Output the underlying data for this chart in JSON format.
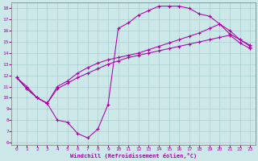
{
  "xlabel": "Windchill (Refroidissement éolien,°C)",
  "bg_color": "#cce8e8",
  "grid_color": "#aacfcf",
  "line_color": "#aa00aa",
  "spine_color": "#888888",
  "xlim": [
    -0.5,
    23.5
  ],
  "ylim": [
    5.8,
    18.5
  ],
  "xticks": [
    0,
    1,
    2,
    3,
    4,
    5,
    6,
    7,
    8,
    9,
    10,
    11,
    12,
    13,
    14,
    15,
    16,
    17,
    18,
    19,
    20,
    21,
    22,
    23
  ],
  "yticks": [
    6,
    7,
    8,
    9,
    10,
    11,
    12,
    13,
    14,
    15,
    16,
    17,
    18
  ],
  "line1_x": [
    0,
    1,
    2,
    3,
    4,
    5,
    6,
    7,
    8,
    9,
    10,
    11,
    12,
    13,
    14,
    15,
    16,
    17,
    18,
    19,
    20,
    21,
    22,
    23
  ],
  "line1_y": [
    11.8,
    10.8,
    10.0,
    9.5,
    10.8,
    11.3,
    11.8,
    12.2,
    12.6,
    13.0,
    13.3,
    13.6,
    13.8,
    14.0,
    14.2,
    14.4,
    14.6,
    14.8,
    15.0,
    15.2,
    15.4,
    15.6,
    14.9,
    14.4
  ],
  "line2_x": [
    0,
    1,
    2,
    3,
    4,
    5,
    6,
    7,
    8,
    9,
    10,
    11,
    12,
    13,
    14,
    15,
    16,
    17,
    18,
    19,
    20,
    21,
    22,
    23
  ],
  "line2_y": [
    11.8,
    11.0,
    10.0,
    9.5,
    11.0,
    11.5,
    12.2,
    12.7,
    13.1,
    13.4,
    13.6,
    13.8,
    14.0,
    14.3,
    14.6,
    14.9,
    15.2,
    15.5,
    15.8,
    16.2,
    16.6,
    16.0,
    15.2,
    14.7
  ],
  "line3_x": [
    0,
    1,
    2,
    3,
    4,
    5,
    6,
    7,
    8,
    9,
    10,
    11,
    12,
    13,
    14,
    15,
    16,
    17,
    18,
    19,
    20,
    21,
    22,
    23
  ],
  "line3_y": [
    11.8,
    10.8,
    10.0,
    9.5,
    8.0,
    7.8,
    6.8,
    6.4,
    7.2,
    9.4,
    16.2,
    16.7,
    17.4,
    17.8,
    18.2,
    18.2,
    18.2,
    18.0,
    17.5,
    17.3,
    16.6,
    15.7,
    15.2,
    14.6
  ]
}
